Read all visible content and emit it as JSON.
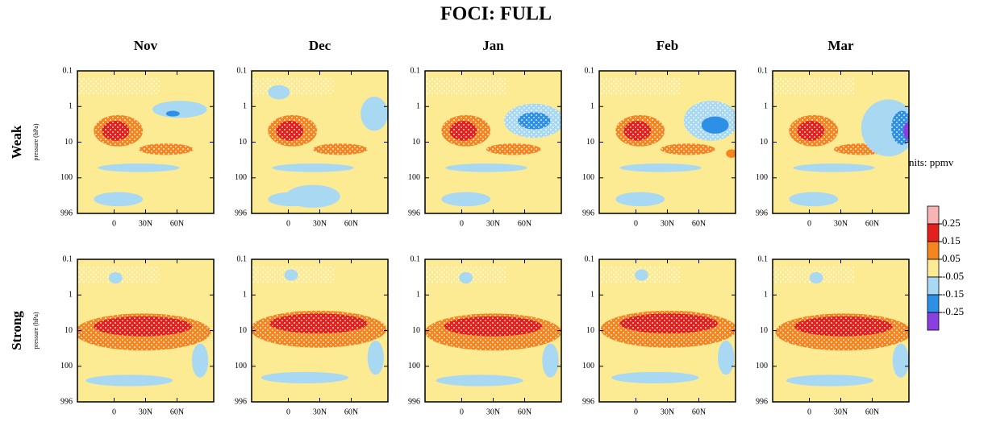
{
  "title": "FOCI: FULL",
  "columns": [
    "Nov",
    "Dec",
    "Jan",
    "Feb",
    "Mar"
  ],
  "rows": [
    "Weak",
    "Strong"
  ],
  "y_label": "pressure (hPa)",
  "yscale": "log",
  "y_inverted": true,
  "ylim": [
    0.1,
    996
  ],
  "yticks": [
    0.1,
    1,
    10,
    100,
    996
  ],
  "xlim": [
    -35,
    95
  ],
  "xticks": [
    0,
    {
      "value": 30,
      "label": "30N"
    },
    {
      "value": 60,
      "label": "60N"
    }
  ],
  "colorbar": {
    "title": "Units: ppmv",
    "levels": [
      0.25,
      0.15,
      0.05,
      -0.05,
      -0.15,
      -0.25
    ],
    "colors": [
      "#f7b4b4",
      "#e3201b",
      "#f5861f",
      "#fdeb93",
      "#a9d9f2",
      "#2e8fe6",
      "#8a3fe0"
    ]
  }
}
